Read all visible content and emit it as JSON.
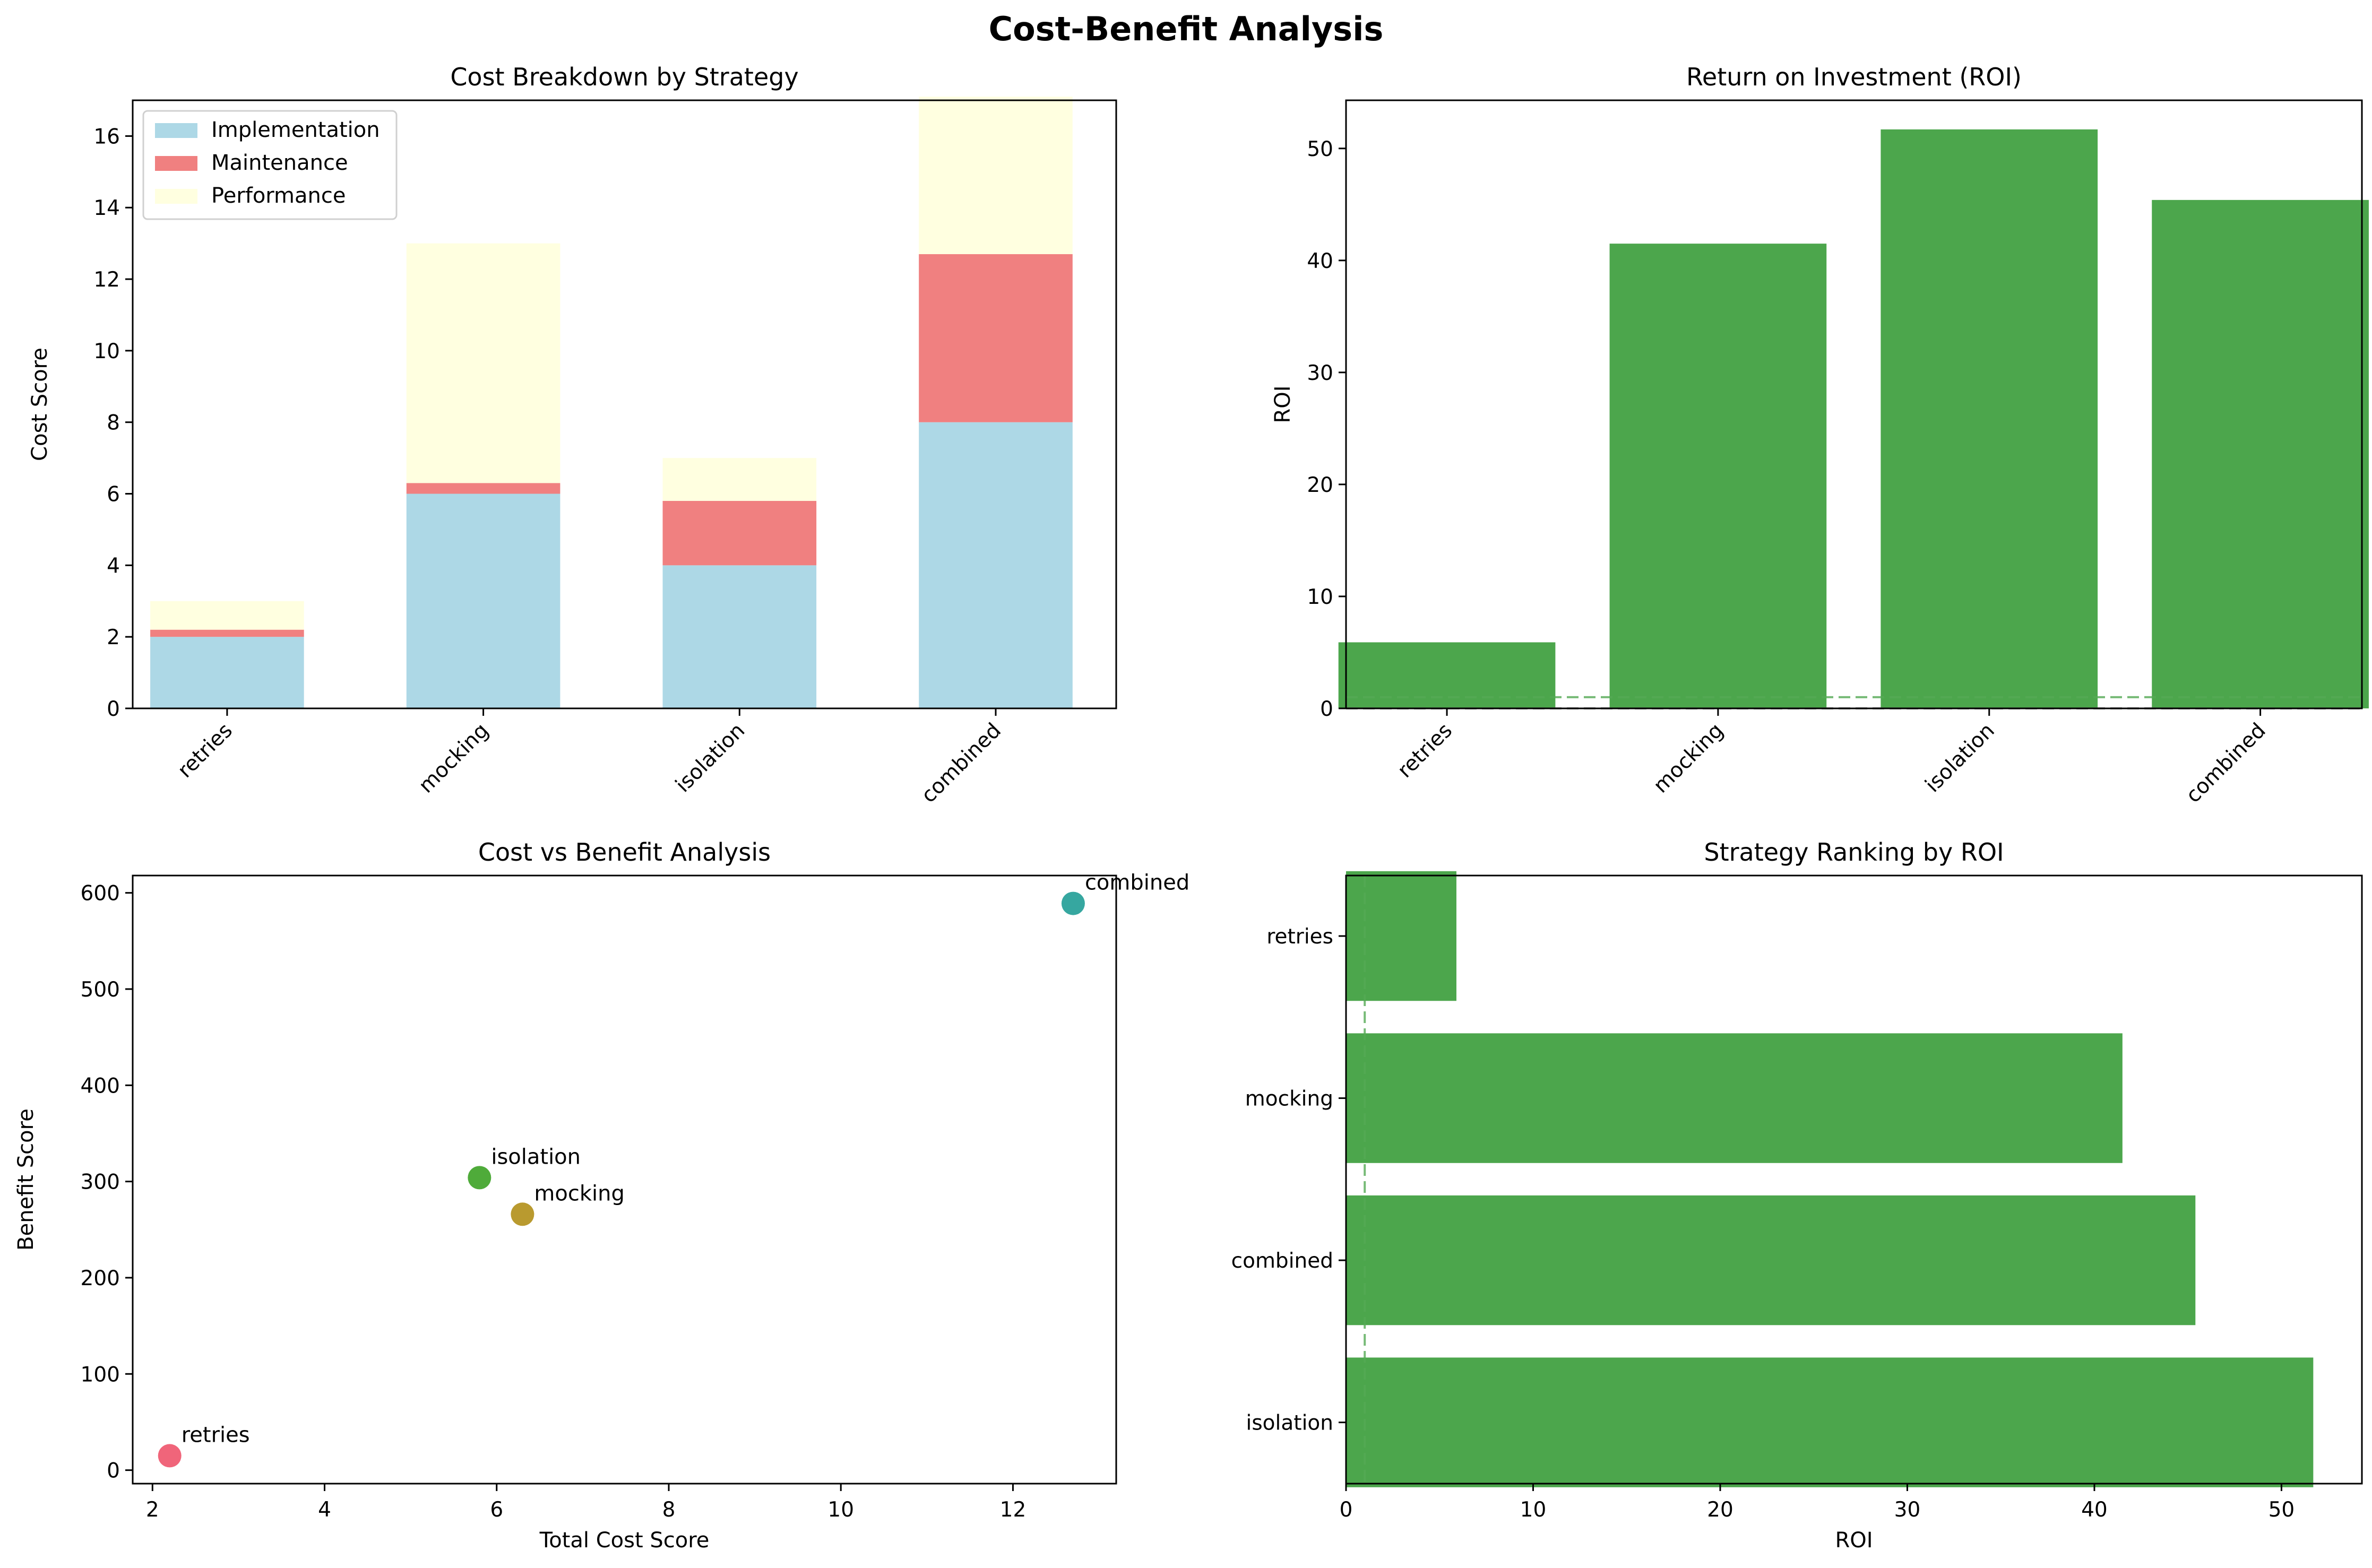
{
  "figure_title": "Cost-Benefit Analysis",
  "chart_data": [
    {
      "id": "cost-breakdown",
      "type": "bar",
      "stacked": true,
      "title": "Cost Breakdown by Strategy",
      "xlabel": "",
      "ylabel": "Cost Score",
      "categories": [
        "retries",
        "mocking",
        "isolation",
        "combined"
      ],
      "ylim": [
        0,
        17
      ],
      "yticks": [
        0,
        2,
        4,
        6,
        8,
        10,
        12,
        14,
        16
      ],
      "grid": false,
      "legend": "top-left",
      "series": [
        {
          "name": "Implementation",
          "values": [
            2.0,
            6.0,
            4.0,
            8.0
          ],
          "color": "#add8e6"
        },
        {
          "name": "Maintenance",
          "values": [
            0.2,
            0.3,
            1.8,
            4.7
          ],
          "color": "#f08080"
        },
        {
          "name": "Performance",
          "values": [
            0.8,
            6.7,
            1.2,
            4.4
          ],
          "color": "#ffffe0"
        }
      ]
    },
    {
      "id": "roi-bar",
      "type": "bar",
      "title": "Return on Investment (ROI)",
      "xlabel": "",
      "ylabel": "ROI",
      "categories": [
        "retries",
        "mocking",
        "isolation",
        "combined"
      ],
      "values": [
        5.9,
        41.5,
        51.7,
        45.4
      ],
      "color": "#4ca64c",
      "ylim": [
        0,
        54.3
      ],
      "yticks": [
        0,
        10,
        20,
        30,
        40,
        50
      ],
      "reference_lines": [
        0,
        1
      ],
      "grid": false
    },
    {
      "id": "cost-vs-benefit",
      "type": "scatter",
      "title": "Cost vs Benefit Analysis",
      "xlabel": "Total Cost Score",
      "ylabel": "Benefit Score",
      "xlim": [
        1.77,
        13.2
      ],
      "ylim": [
        -14,
        618
      ],
      "xticks": [
        2,
        4,
        6,
        8,
        10,
        12
      ],
      "yticks": [
        0,
        100,
        200,
        300,
        400,
        500,
        600
      ],
      "grid": false,
      "points": [
        {
          "label": "retries",
          "x": 2.2,
          "y": 15,
          "color": "#f0657a"
        },
        {
          "label": "mocking",
          "x": 6.3,
          "y": 266,
          "color": "#b99a2f"
        },
        {
          "label": "isolation",
          "x": 5.8,
          "y": 304,
          "color": "#4fab3a"
        },
        {
          "label": "combined",
          "x": 12.7,
          "y": 589,
          "color": "#36a7a0"
        }
      ]
    },
    {
      "id": "roi-ranking",
      "type": "bar",
      "orientation": "horizontal",
      "title": "Strategy Ranking by ROI",
      "xlabel": "ROI",
      "ylabel": "",
      "categories": [
        "retries",
        "mocking",
        "combined",
        "isolation"
      ],
      "values": [
        5.9,
        41.5,
        45.4,
        51.7
      ],
      "color": "#4ca64c",
      "xlim": [
        0,
        54.3
      ],
      "xticks": [
        0,
        10,
        20,
        30,
        40,
        50
      ],
      "reference_lines": [
        1
      ],
      "grid": false
    }
  ]
}
